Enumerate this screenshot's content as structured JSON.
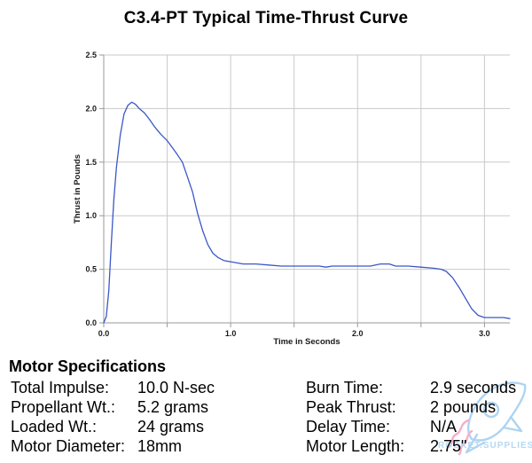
{
  "title": "C3.4-PT Typical Time-Thrust Curve",
  "chart_data": {
    "type": "line",
    "title": "C3.4-PT Typical Time-Thrust Curve",
    "xlabel": "Time in Seconds",
    "ylabel": "Thrust in Pounds",
    "xlim": [
      0,
      3.2
    ],
    "ylim": [
      0,
      2.5
    ],
    "grid": true,
    "legend": false,
    "xtick_values": [
      0,
      0.5,
      1.0,
      1.5,
      2.0,
      2.5,
      3.0
    ],
    "xtick_labels": [
      "0.0",
      "",
      "1.0",
      "",
      "2.0",
      "",
      "3.0"
    ],
    "ytick_values": [
      0,
      0.5,
      1.0,
      1.5,
      2.0,
      2.5
    ],
    "ytick_labels": [
      "0.0",
      "0.5",
      "1.0",
      "1.5",
      "2.0",
      "2.5"
    ],
    "series": [
      {
        "name": "thrust",
        "color": "#3a57c8",
        "points": [
          [
            0.0,
            0.0
          ],
          [
            0.02,
            0.06
          ],
          [
            0.04,
            0.3
          ],
          [
            0.06,
            0.75
          ],
          [
            0.08,
            1.15
          ],
          [
            0.1,
            1.45
          ],
          [
            0.13,
            1.75
          ],
          [
            0.16,
            1.95
          ],
          [
            0.19,
            2.03
          ],
          [
            0.22,
            2.06
          ],
          [
            0.25,
            2.04
          ],
          [
            0.28,
            2.0
          ],
          [
            0.32,
            1.96
          ],
          [
            0.36,
            1.9
          ],
          [
            0.4,
            1.83
          ],
          [
            0.45,
            1.76
          ],
          [
            0.5,
            1.7
          ],
          [
            0.55,
            1.62
          ],
          [
            0.58,
            1.57
          ],
          [
            0.62,
            1.5
          ],
          [
            0.66,
            1.36
          ],
          [
            0.7,
            1.22
          ],
          [
            0.74,
            1.02
          ],
          [
            0.78,
            0.86
          ],
          [
            0.82,
            0.73
          ],
          [
            0.86,
            0.65
          ],
          [
            0.9,
            0.61
          ],
          [
            0.95,
            0.58
          ],
          [
            1.0,
            0.57
          ],
          [
            1.05,
            0.56
          ],
          [
            1.1,
            0.55
          ],
          [
            1.2,
            0.55
          ],
          [
            1.3,
            0.54
          ],
          [
            1.4,
            0.53
          ],
          [
            1.5,
            0.53
          ],
          [
            1.6,
            0.53
          ],
          [
            1.7,
            0.53
          ],
          [
            1.75,
            0.52
          ],
          [
            1.8,
            0.53
          ],
          [
            1.9,
            0.53
          ],
          [
            2.0,
            0.53
          ],
          [
            2.1,
            0.53
          ],
          [
            2.18,
            0.55
          ],
          [
            2.25,
            0.55
          ],
          [
            2.3,
            0.53
          ],
          [
            2.4,
            0.53
          ],
          [
            2.5,
            0.52
          ],
          [
            2.6,
            0.51
          ],
          [
            2.66,
            0.5
          ],
          [
            2.7,
            0.48
          ],
          [
            2.75,
            0.42
          ],
          [
            2.8,
            0.33
          ],
          [
            2.85,
            0.23
          ],
          [
            2.9,
            0.13
          ],
          [
            2.95,
            0.07
          ],
          [
            3.0,
            0.05
          ],
          [
            3.1,
            0.05
          ],
          [
            3.15,
            0.05
          ],
          [
            3.2,
            0.04
          ]
        ]
      }
    ]
  },
  "colors": {
    "curve": "#3a57c8",
    "grid": "#c9c9c9",
    "axis": "#999999",
    "watermark_blue": "#aed4f2",
    "watermark_pink": "#f5aecb"
  },
  "specs": {
    "heading": "Motor Specifications",
    "left": [
      {
        "label": "Total Impulse:",
        "value": "10.0 N-sec"
      },
      {
        "label": "Propellant Wt.:",
        "value": "5.2 grams"
      },
      {
        "label": "Loaded Wt.:",
        "value": "24 grams"
      },
      {
        "label": "Motor Diameter:",
        "value": "18mm"
      }
    ],
    "right": [
      {
        "label": "Burn Time:",
        "value": "2.9 seconds"
      },
      {
        "label": "Peak Thrust:",
        "value": "2 pounds"
      },
      {
        "label": "Delay Time:",
        "value": "N/A"
      },
      {
        "label": "Motor Length:",
        "value": "2.75\""
      }
    ]
  },
  "watermark": {
    "text": "ROCKET.SUPPLIES"
  }
}
